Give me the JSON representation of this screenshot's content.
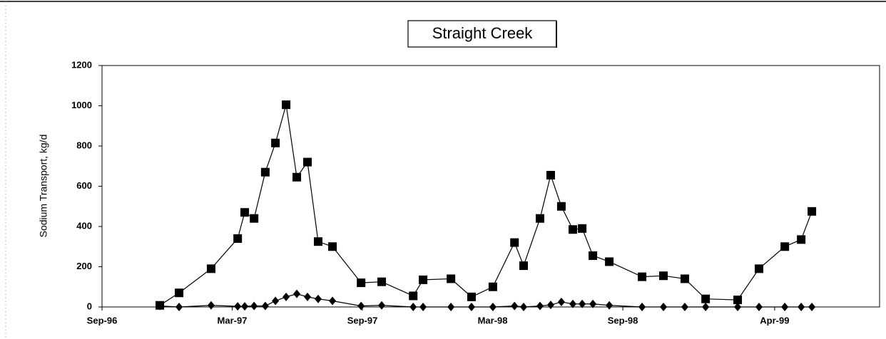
{
  "chart_data": {
    "type": "line",
    "title": "Straight Creek",
    "y_label": "Sodium Transport, kg/d",
    "x": [
      1996.889,
      1996.963,
      1997.086,
      1997.188,
      1997.215,
      1997.251,
      1997.294,
      1997.333,
      1997.374,
      1997.415,
      1997.456,
      1997.497,
      1997.552,
      1997.662,
      1997.741,
      1997.862,
      1997.9,
      1998.007,
      1998.086,
      1998.168,
      1998.251,
      1998.286,
      1998.349,
      1998.39,
      1998.431,
      1998.475,
      1998.511,
      1998.552,
      1998.615,
      1998.741,
      1998.823,
      1998.905,
      1998.985,
      1999.108,
      1999.19,
      1999.289,
      1999.352,
      1999.393
    ],
    "series": [
      {
        "color": "#000000",
        "marker": "square",
        "values": [
          8,
          70,
          190,
          340,
          470,
          440,
          670,
          815,
          1005,
          645,
          720,
          325,
          300,
          120,
          125,
          55,
          135,
          140,
          50,
          100,
          320,
          205,
          440,
          655,
          500,
          385,
          390,
          255,
          225,
          150,
          155,
          140,
          40,
          35,
          190,
          300,
          335,
          475
        ]
      },
      {
        "color": "#000000",
        "marker": "diamond",
        "values": [
          5,
          0,
          8,
          3,
          3,
          5,
          5,
          30,
          50,
          65,
          50,
          40,
          30,
          5,
          8,
          0,
          0,
          0,
          0,
          0,
          5,
          0,
          5,
          10,
          25,
          15,
          15,
          15,
          8,
          0,
          0,
          0,
          0,
          0,
          0,
          0,
          0,
          0
        ]
      }
    ],
    "xlim": [
      1996.667,
      1999.653
    ],
    "xticks": [
      {
        "value": 1996.667,
        "label": "Sep-96"
      },
      {
        "value": 1997.167,
        "label": "Mar-97"
      },
      {
        "value": 1997.667,
        "label": "Sep-97"
      },
      {
        "value": 1998.167,
        "label": "Mar-98"
      },
      {
        "value": 1998.667,
        "label": "Sep-98"
      },
      {
        "value": 1999.25,
        "label": "Apr-99"
      }
    ],
    "ylim": [
      0,
      1200
    ],
    "yticks": [
      0,
      200,
      400,
      600,
      800,
      1000,
      1200
    ],
    "grid": false
  }
}
